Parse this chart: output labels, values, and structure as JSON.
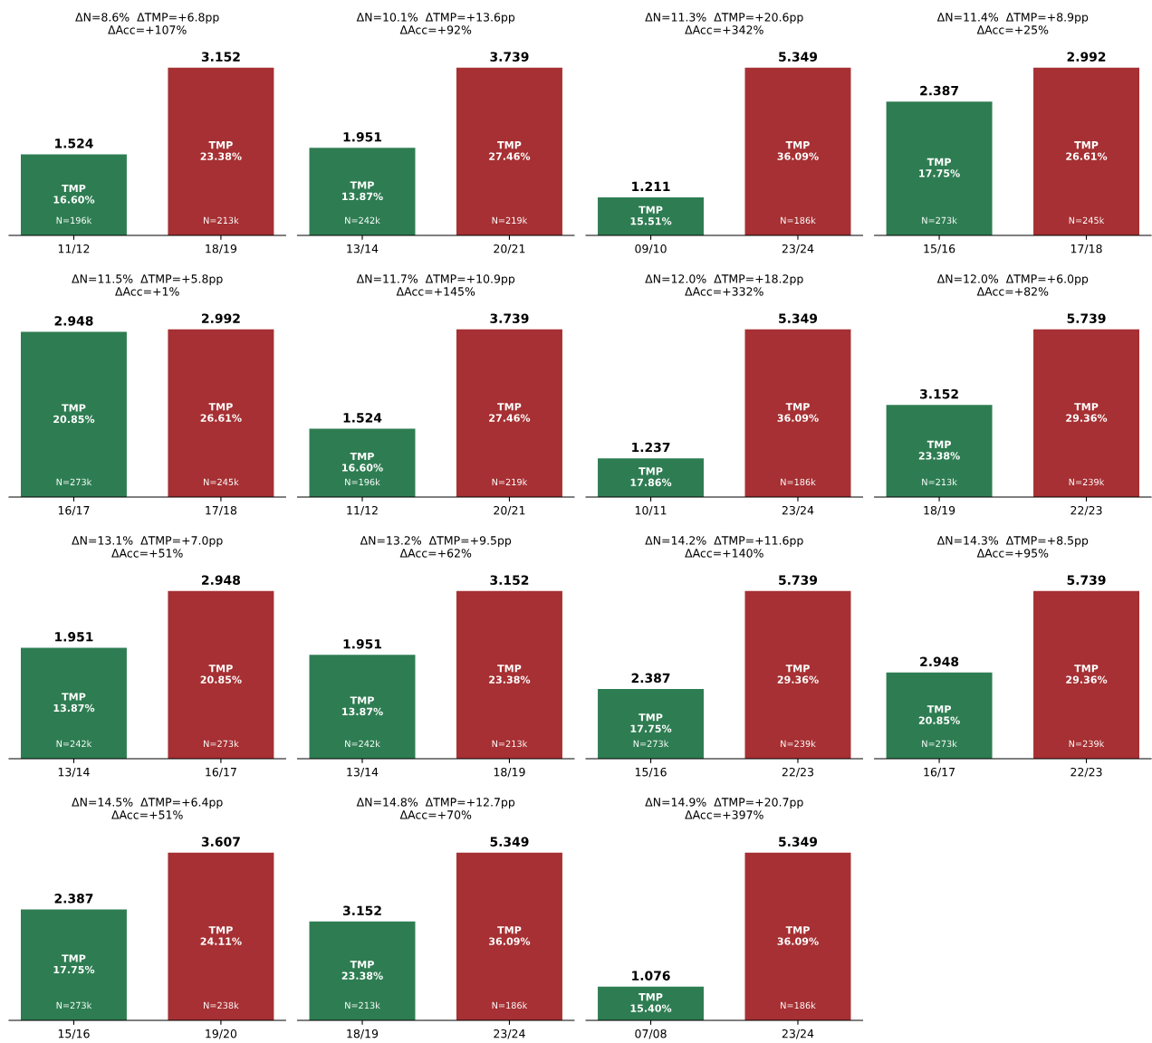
{
  "chart_data": [
    {
      "type": "bar",
      "title": "ΔN=8.6%  ΔTMP=+6.8pp\nΔAcc=+107%",
      "categories": [
        "11/12",
        "18/19"
      ],
      "values": [
        1.524,
        3.152
      ],
      "colors": [
        "#2e7d52",
        "#a63033"
      ],
      "data_labels": true,
      "annotations": [
        "TMP\n16.60%",
        "N=196k",
        "TMP\n23.38%",
        "N=213k"
      ]
    },
    {
      "type": "bar",
      "title": "ΔN=10.1%  ΔTMP=+13.6pp\nΔAcc=+92%",
      "categories": [
        "13/14",
        "20/21"
      ],
      "values": [
        1.951,
        3.739
      ],
      "colors": [
        "#2e7d52",
        "#a63033"
      ],
      "data_labels": true,
      "annotations": [
        "TMP\n13.87%",
        "N=242k",
        "TMP\n27.46%",
        "N=219k"
      ]
    },
    {
      "type": "bar",
      "title": "ΔN=11.3%  ΔTMP=+20.6pp\nΔAcc=+342%",
      "categories": [
        "09/10",
        "23/24"
      ],
      "values": [
        1.211,
        5.349
      ],
      "colors": [
        "#2e7d52",
        "#a63033"
      ],
      "data_labels": true,
      "annotations": [
        "TMP\n15.51%",
        "TMP\n36.09%",
        "N=186k"
      ]
    },
    {
      "type": "bar",
      "title": "ΔN=11.4%  ΔTMP=+8.9pp\nΔAcc=+25%",
      "categories": [
        "15/16",
        "17/18"
      ],
      "values": [
        2.387,
        2.992
      ],
      "colors": [
        "#2e7d52",
        "#a63033"
      ],
      "data_labels": true,
      "annotations": [
        "TMP\n17.75%",
        "N=273k",
        "TMP\n26.61%",
        "N=245k"
      ]
    },
    {
      "type": "bar",
      "title": "ΔN=11.5%  ΔTMP=+5.8pp\nΔAcc=+1%",
      "categories": [
        "16/17",
        "17/18"
      ],
      "values": [
        2.948,
        2.992
      ],
      "colors": [
        "#2e7d52",
        "#a63033"
      ],
      "data_labels": true,
      "annotations": [
        "TMP\n20.85%",
        "N=273k",
        "TMP\n26.61%",
        "N=245k"
      ]
    },
    {
      "type": "bar",
      "title": "ΔN=11.7%  ΔTMP=+10.9pp\nΔAcc=+145%",
      "categories": [
        "11/12",
        "20/21"
      ],
      "values": [
        1.524,
        3.739
      ],
      "colors": [
        "#2e7d52",
        "#a63033"
      ],
      "data_labels": true,
      "annotations": [
        "TMP\n16.60%",
        "N=196k",
        "TMP\n27.46%",
        "N=219k"
      ]
    },
    {
      "type": "bar",
      "title": "ΔN=12.0%  ΔTMP=+18.2pp\nΔAcc=+332%",
      "categories": [
        "10/11",
        "23/24"
      ],
      "values": [
        1.237,
        5.349
      ],
      "colors": [
        "#2e7d52",
        "#a63033"
      ],
      "data_labels": true,
      "annotations": [
        "TMP\n17.86%",
        "TMP\n36.09%",
        "N=186k"
      ]
    },
    {
      "type": "bar",
      "title": "ΔN=12.0%  ΔTMP=+6.0pp\nΔAcc=+82%",
      "categories": [
        "18/19",
        "22/23"
      ],
      "values": [
        3.152,
        5.739
      ],
      "colors": [
        "#2e7d52",
        "#a63033"
      ],
      "data_labels": true,
      "annotations": [
        "TMP\n23.38%",
        "N=213k",
        "TMP\n29.36%",
        "N=239k"
      ]
    },
    {
      "type": "bar",
      "title": "ΔN=13.1%  ΔTMP=+7.0pp\nΔAcc=+51%",
      "categories": [
        "13/14",
        "16/17"
      ],
      "values": [
        1.951,
        2.948
      ],
      "colors": [
        "#2e7d52",
        "#a63033"
      ],
      "data_labels": true,
      "annotations": [
        "TMP\n13.87%",
        "N=242k",
        "TMP\n20.85%",
        "N=273k"
      ]
    },
    {
      "type": "bar",
      "title": "ΔN=13.2%  ΔTMP=+9.5pp\nΔAcc=+62%",
      "categories": [
        "13/14",
        "18/19"
      ],
      "values": [
        1.951,
        3.152
      ],
      "colors": [
        "#2e7d52",
        "#a63033"
      ],
      "data_labels": true,
      "annotations": [
        "TMP\n13.87%",
        "N=242k",
        "TMP\n23.38%",
        "N=213k"
      ]
    },
    {
      "type": "bar",
      "title": "ΔN=14.2%  ΔTMP=+11.6pp\nΔAcc=+140%",
      "categories": [
        "15/16",
        "22/23"
      ],
      "values": [
        2.387,
        5.739
      ],
      "colors": [
        "#2e7d52",
        "#a63033"
      ],
      "data_labels": true,
      "annotations": [
        "TMP\n17.75%",
        "N=273k",
        "TMP\n29.36%",
        "N=239k"
      ]
    },
    {
      "type": "bar",
      "title": "ΔN=14.3%  ΔTMP=+8.5pp\nΔAcc=+95%",
      "categories": [
        "16/17",
        "22/23"
      ],
      "values": [
        2.948,
        5.739
      ],
      "colors": [
        "#2e7d52",
        "#a63033"
      ],
      "data_labels": true,
      "annotations": [
        "TMP\n20.85%",
        "N=273k",
        "TMP\n29.36%",
        "N=239k"
      ]
    },
    {
      "type": "bar",
      "title": "ΔN=14.5%  ΔTMP=+6.4pp\nΔAcc=+51%",
      "categories": [
        "15/16",
        "19/20"
      ],
      "values": [
        2.387,
        3.607
      ],
      "colors": [
        "#2e7d52",
        "#a63033"
      ],
      "data_labels": true,
      "annotations": [
        "TMP\n17.75%",
        "N=273k",
        "TMP\n24.11%",
        "N=238k"
      ]
    },
    {
      "type": "bar",
      "title": "ΔN=14.8%  ΔTMP=+12.7pp\nΔAcc=+70%",
      "categories": [
        "18/19",
        "23/24"
      ],
      "values": [
        3.152,
        5.349
      ],
      "colors": [
        "#2e7d52",
        "#a63033"
      ],
      "data_labels": true,
      "annotations": [
        "TMP\n23.38%",
        "N=213k",
        "TMP\n36.09%",
        "N=186k"
      ]
    },
    {
      "type": "bar",
      "title": "ΔN=14.9%  ΔTMP=+20.7pp\nΔAcc=+397%",
      "categories": [
        "07/08",
        "23/24"
      ],
      "values": [
        1.076,
        5.349
      ],
      "colors": [
        "#2e7d52",
        "#a63033"
      ],
      "data_labels": true,
      "annotations": [
        "TMP\n15.40%",
        "TMP\n36.09%",
        "N=186k"
      ]
    }
  ]
}
